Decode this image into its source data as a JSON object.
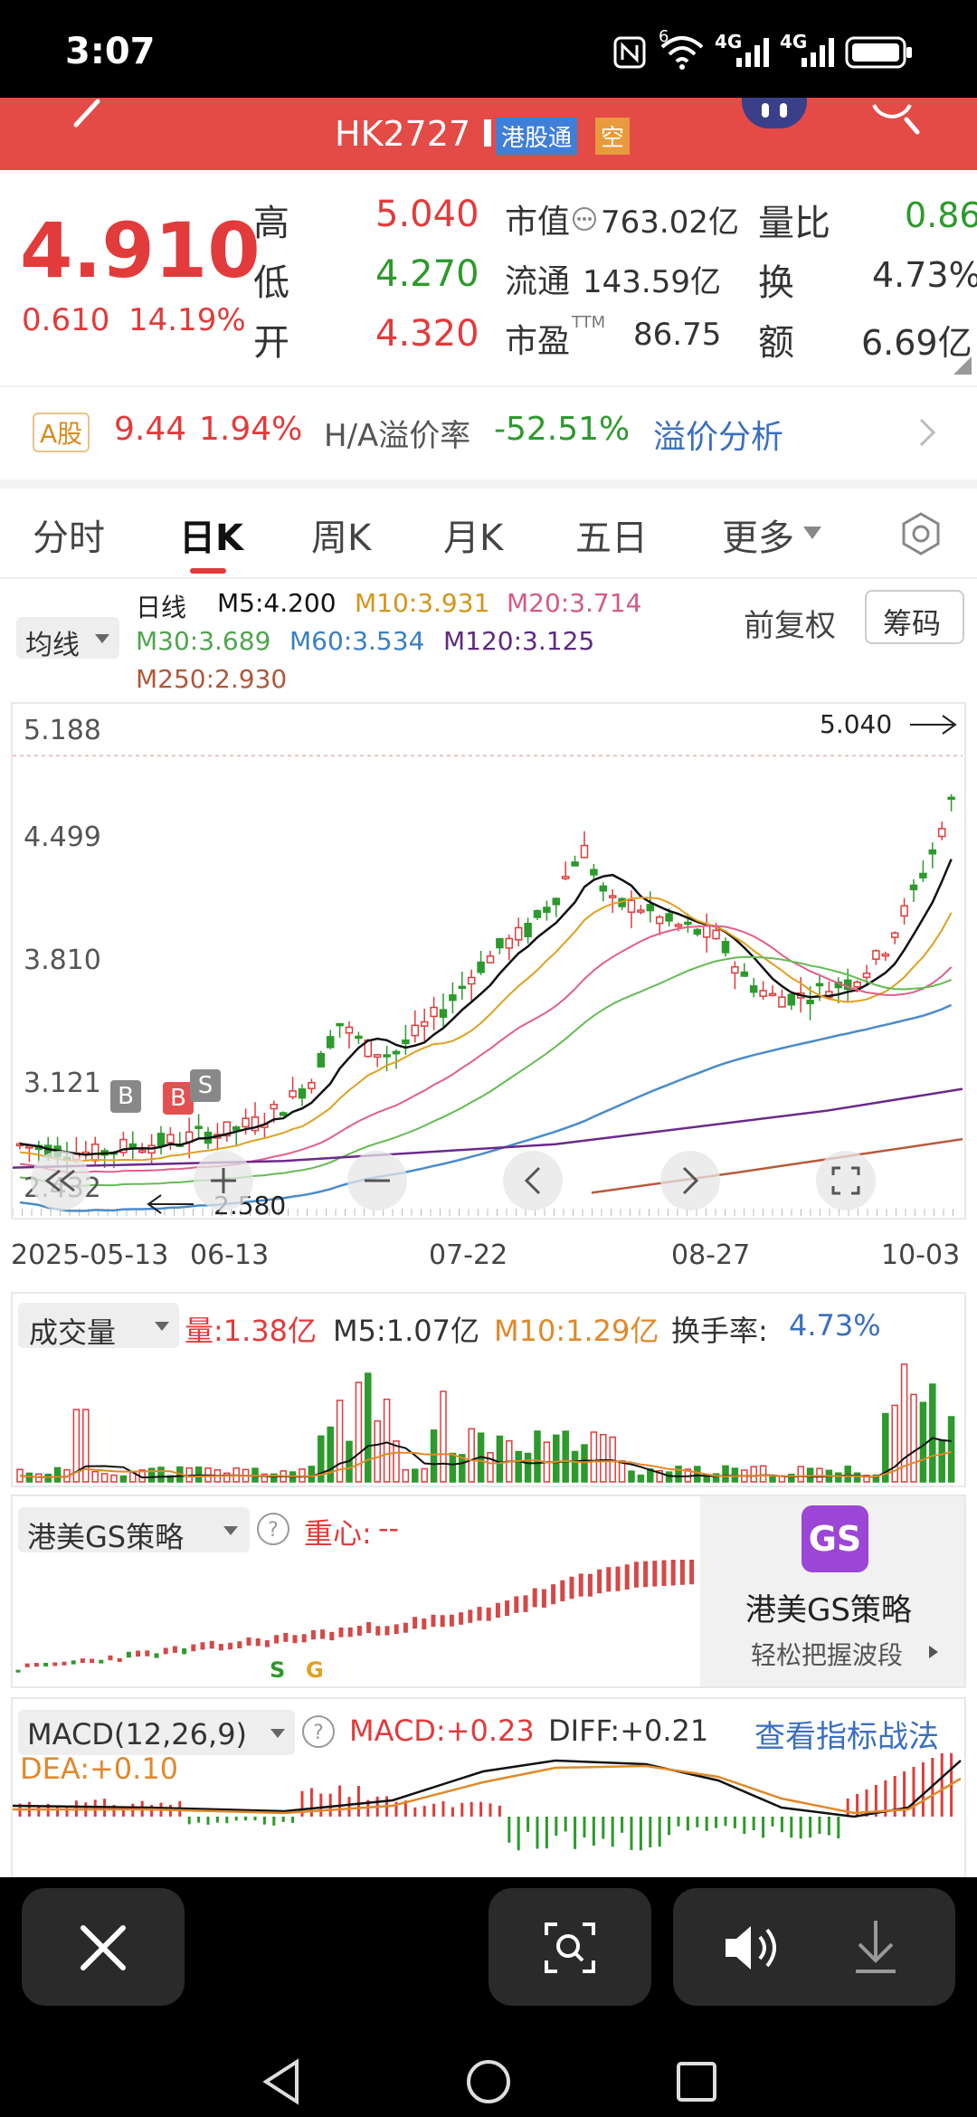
{
  "status_bar": {
    "time": "3:07",
    "network_1": "4G",
    "network_2": "4G",
    "wifi_badge": "6"
  },
  "header": {
    "code": "HK2727",
    "tag_connect": "港股通",
    "tag_short": "空"
  },
  "quote": {
    "price": "4.910",
    "change": "0.610",
    "change_pct": "14.19%",
    "high_label": "高",
    "high": "5.040",
    "low_label": "低",
    "low": "4.270",
    "open_label": "开",
    "open": "4.320",
    "mktcap_label": "市值",
    "mktcap": "763.02亿",
    "float_label": "流通",
    "float": "143.59亿",
    "pe_label": "市盈",
    "pe_sup": "TTM",
    "pe": "86.75",
    "vol_ratio_label": "量比",
    "vol_ratio": "0.86",
    "turnover_label": "换",
    "turnover": "4.73%",
    "amount_label": "额",
    "amount": "6.69亿"
  },
  "a_share": {
    "badge": "A股",
    "price": "9.44",
    "pct": "1.94%",
    "premium_label": "H/A溢价率",
    "premium": "-52.51%",
    "analysis_link": "溢价分析"
  },
  "tabs": [
    "分时",
    "日K",
    "周K",
    "月K",
    "五日",
    "更多"
  ],
  "active_tab": 1,
  "kline": {
    "ma_selector": "均线",
    "line_label": "日线",
    "ma5": "M5:4.200",
    "ma10": "M10:3.931",
    "ma20": "M20:3.714",
    "ma30": "M30:3.689",
    "ma60": "M60:3.534",
    "ma120": "M120:3.125",
    "ma250": "M250:2.930",
    "adjust": "前复权",
    "chips_button": "筹码",
    "y_ticks": [
      "5.188",
      "4.499",
      "3.810",
      "3.121",
      "2.432"
    ],
    "max_label": "5.040",
    "min_label": "2.580",
    "x_ticks": [
      "2025-05-13",
      "06-13",
      "07-22",
      "08-27",
      "10-03"
    ],
    "markers_b": [
      "B",
      "B"
    ],
    "marker_s": "S",
    "colors": {
      "ma5": "#111111",
      "ma10": "#e0a020",
      "ma20": "#e0608a",
      "ma30": "#66bb55",
      "ma60": "#4a8cc9",
      "ma120": "#6a2a8a",
      "ma250": "#b85a3a",
      "up": "#e23b3b",
      "down": "#2c9a2c"
    }
  },
  "volume": {
    "selector": "成交量",
    "vol": "量:1.38亿",
    "m5": "M5:1.07亿",
    "m10": "M10:1.29亿",
    "turnover_label": "换手率:",
    "turnover_value": "4.73%"
  },
  "gs": {
    "selector": "港美GS策略",
    "center_label": "重心:",
    "center_value": "--",
    "ad_icon": "GS",
    "ad_title": "港美GS策略",
    "ad_sub": "轻松把握波段",
    "marker_s": "S",
    "marker_g": "G"
  },
  "macd": {
    "selector": "MACD(12,26,9)",
    "macd": "MACD:+0.23",
    "diff": "DIFF:+0.21",
    "dea": "DEA:+0.10",
    "link": "查看指标战法"
  },
  "chart_data": {
    "type": "candlestick",
    "x": [
      "2025-05-13",
      "06-13",
      "07-22",
      "08-27",
      "10-03"
    ],
    "ylim": [
      2.432,
      5.188
    ],
    "high": 5.04,
    "low": 2.58,
    "last_close": 4.91
  }
}
